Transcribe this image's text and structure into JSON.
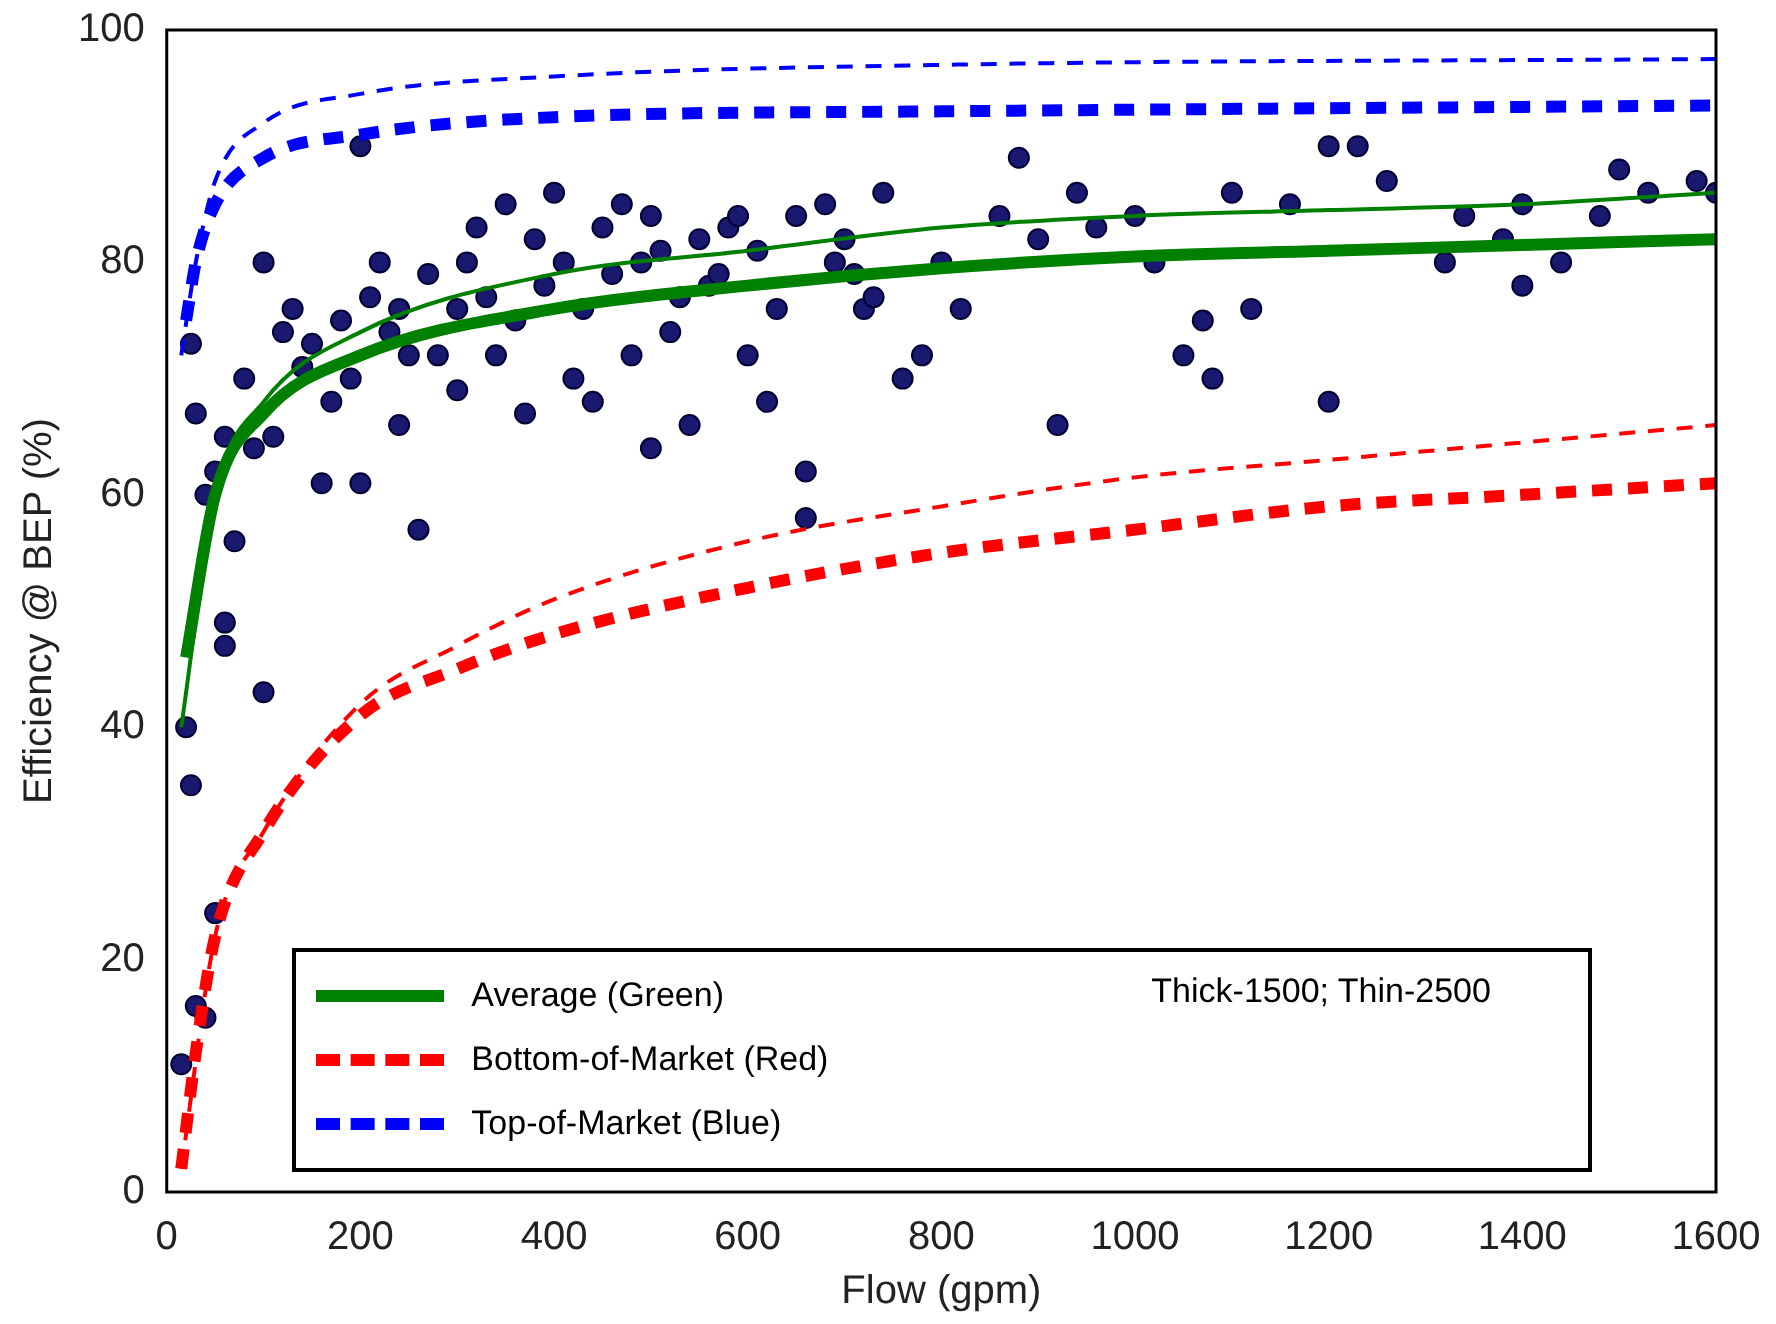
{
  "chart_data": {
    "type": "scatter",
    "xlabel": "Flow (gpm)",
    "ylabel": "Efficiency @ BEP (%)",
    "xlim": [
      0,
      1600
    ],
    "ylim": [
      0,
      100
    ],
    "xticks": [
      0,
      200,
      400,
      600,
      800,
      1000,
      1200,
      1400,
      1600
    ],
    "yticks": [
      0,
      20,
      40,
      60,
      80,
      100
    ],
    "grid": false,
    "legend": "bottom",
    "annotations": [
      "Thick-1500; Thin-2500"
    ],
    "series": [
      {
        "color": "#191970",
        "marker": "circle",
        "x": [
          15,
          20,
          25,
          30,
          40,
          50,
          60,
          60,
          70,
          60,
          40,
          50,
          30,
          25,
          80,
          100,
          100,
          110,
          140,
          160,
          130,
          180,
          200,
          220,
          260,
          250,
          300,
          320,
          350,
          380,
          400,
          420,
          440,
          460,
          480,
          500,
          500,
          520,
          540,
          560,
          580,
          600,
          620,
          660,
          660,
          680,
          700,
          720,
          740,
          760,
          780,
          800,
          820,
          860,
          880,
          900,
          920,
          940,
          960,
          1000,
          1020,
          1050,
          1070,
          1080,
          1100,
          1120,
          1160,
          1200,
          1200,
          1230,
          1260,
          1320,
          1340,
          1380,
          1400,
          1400,
          1440,
          1480,
          1500,
          1530,
          1580,
          1600,
          120,
          150,
          170,
          190,
          210,
          230,
          240,
          270,
          280,
          310,
          330,
          360,
          390,
          410,
          430,
          450,
          470,
          490,
          510,
          530,
          550,
          570,
          590,
          610,
          630,
          650,
          690,
          710,
          730,
          90,
          200,
          240,
          300,
          340,
          370
        ],
        "values": [
          11,
          40,
          35,
          16,
          15,
          24,
          49,
          47,
          56,
          65,
          60,
          62,
          67,
          73,
          70,
          80,
          43,
          65,
          71,
          61,
          76,
          75,
          90,
          80,
          57,
          72,
          76,
          83,
          85,
          82,
          86,
          70,
          68,
          79,
          72,
          84,
          64,
          74,
          66,
          78,
          83,
          72,
          68,
          58,
          62,
          85,
          82,
          76,
          86,
          70,
          72,
          80,
          76,
          84,
          89,
          82,
          66,
          86,
          83,
          84,
          80,
          72,
          75,
          70,
          86,
          76,
          85,
          90,
          68,
          90,
          87,
          80,
          84,
          82,
          85,
          78,
          80,
          84,
          88,
          86,
          87,
          86,
          74,
          73,
          68,
          70,
          77,
          74,
          76,
          79,
          72,
          80,
          77,
          75,
          78,
          80,
          76,
          83,
          85,
          80,
          81,
          77,
          82,
          79,
          84,
          81,
          76,
          84,
          80,
          79,
          77,
          64,
          61,
          66,
          69,
          72,
          67
        ]
      },
      {
        "type": "line",
        "name": "Average (Green)",
        "color": "#008000",
        "line_style": "solid",
        "marker": "none",
        "x": [
          20,
          50,
          100,
          200,
          400,
          600,
          800,
          1000,
          1200,
          1400,
          1600
        ],
        "values": [
          46,
          60,
          67,
          72,
          76,
          78,
          79.5,
          80.5,
          81,
          81.5,
          82
        ]
      },
      {
        "type": "line",
        "color": "#008000",
        "line_style": "solid",
        "marker": "none",
        "x": [
          15,
          50,
          100,
          200,
          400,
          600,
          800,
          1000,
          1200,
          1400,
          1600
        ],
        "values": [
          40,
          60,
          68,
          74,
          79,
          81,
          83,
          84,
          84.5,
          85,
          86
        ]
      },
      {
        "type": "line",
        "name": "Bottom-of-Market (Red)",
        "color": "#ff0000",
        "line_style": "dashed",
        "marker": "none",
        "x": [
          15,
          30,
          50,
          100,
          200,
          300,
          400,
          600,
          800,
          1000,
          1200,
          1400,
          1600
        ],
        "values": [
          2,
          12,
          22,
          31,
          41,
          45,
          48,
          52,
          55,
          57,
          59,
          60,
          61
        ]
      },
      {
        "type": "line",
        "color": "#ff0000",
        "line_style": "dashed",
        "marker": "none",
        "x": [
          15,
          50,
          100,
          200,
          300,
          400,
          600,
          800,
          1000,
          1200,
          1400,
          1600
        ],
        "values": [
          2,
          22,
          31,
          42,
          47,
          51,
          56,
          59,
          61.5,
          63,
          64.5,
          66
        ]
      },
      {
        "type": "line",
        "name": "Top-of-Market (Blue)",
        "color": "#0000ff",
        "line_style": "dashed",
        "marker": "none",
        "x": [
          20,
          30,
          50,
          100,
          200,
          400,
          800,
          1600
        ],
        "values": [
          75,
          80,
          85,
          89,
          91,
          92.5,
          93,
          93.5
        ]
      },
      {
        "type": "line",
        "color": "#0000ff",
        "line_style": "dashed",
        "marker": "none",
        "x": [
          15,
          30,
          50,
          100,
          200,
          400,
          800,
          1600
        ],
        "values": [
          72,
          80,
          87,
          92,
          94.5,
          96,
          97,
          97.5
        ]
      }
    ]
  }
}
